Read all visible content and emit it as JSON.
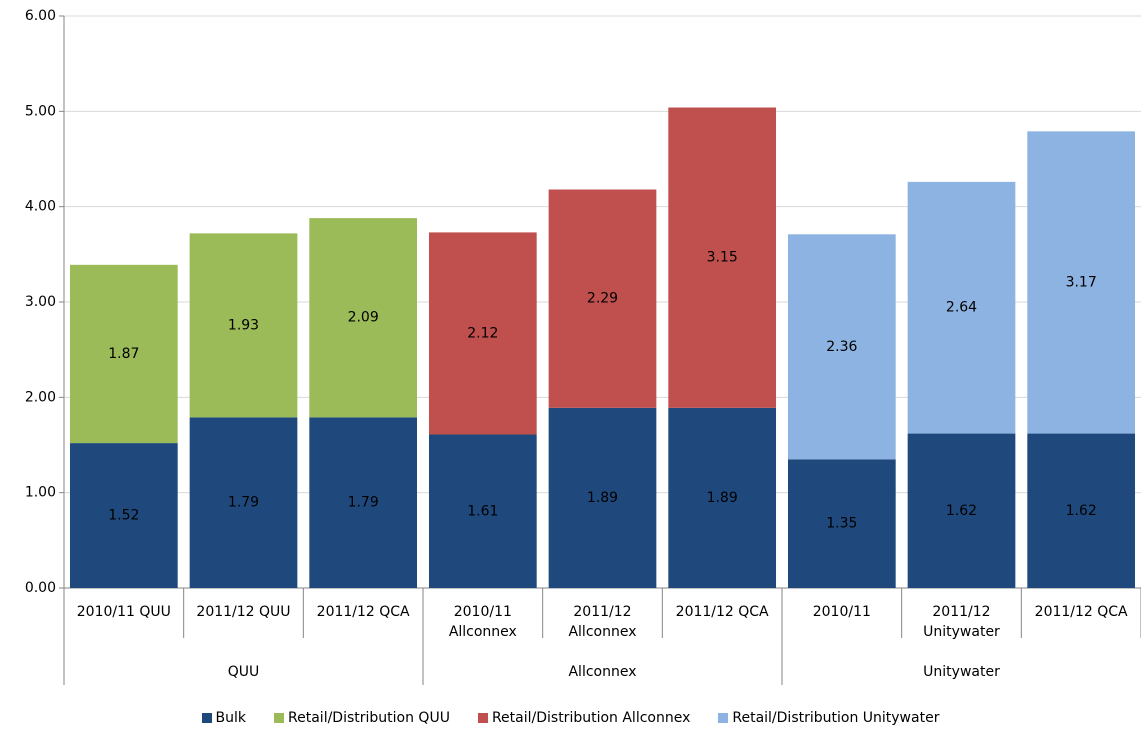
{
  "chart_data": {
    "type": "stacked_bar",
    "categories": [
      "2010/11 QUU",
      "2011/12 QUU",
      "2011/12 QCA",
      "2010/11 Allconnex",
      "2011/12 Allconnex",
      "2011/12 QCA",
      "2010/11",
      "2011/12 Unitywater",
      "2011/12 QCA"
    ],
    "groups": [
      "QUU",
      "Allconnex",
      "Unitywater"
    ],
    "series": [
      {
        "name": "Bulk",
        "color": "#1f497d",
        "values": [
          1.52,
          1.79,
          1.79,
          1.61,
          1.89,
          1.89,
          1.35,
          1.62,
          1.62
        ]
      },
      {
        "name": "Retail/Distribution QUU",
        "color": "#9bbb59",
        "values": [
          1.87,
          1.93,
          2.09,
          null,
          null,
          null,
          null,
          null,
          null
        ]
      },
      {
        "name": "Retail/Distribution Allconnex",
        "color": "#c0504d",
        "values": [
          null,
          null,
          null,
          2.12,
          2.29,
          3.15,
          null,
          null,
          null
        ]
      },
      {
        "name": "Retail/Distribution Unitywater",
        "color": "#8db3e2",
        "values": [
          null,
          null,
          null,
          null,
          null,
          null,
          2.36,
          2.64,
          3.17
        ]
      }
    ],
    "ylim": [
      0,
      6
    ],
    "yticks": [
      {
        "value": 0,
        "label": "0.00"
      },
      {
        "value": 1,
        "label": "1.00"
      },
      {
        "value": 2,
        "label": "2.00"
      },
      {
        "value": 3,
        "label": "3.00"
      },
      {
        "value": 4,
        "label": "4.00"
      },
      {
        "value": 5,
        "label": "5.00"
      },
      {
        "value": 6,
        "label": "6.00"
      }
    ],
    "grid": true,
    "legend": "bottom"
  }
}
